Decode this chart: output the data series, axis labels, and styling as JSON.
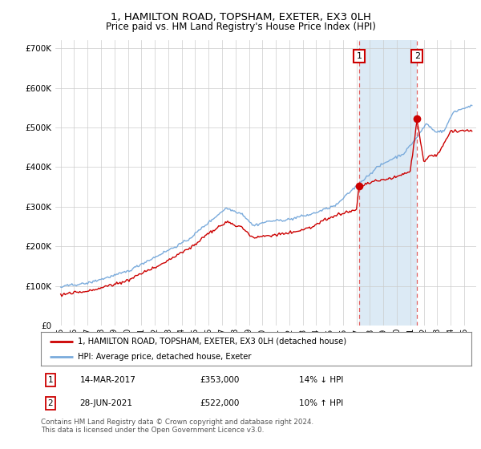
{
  "title": "1, HAMILTON ROAD, TOPSHAM, EXETER, EX3 0LH",
  "subtitle": "Price paid vs. HM Land Registry's House Price Index (HPI)",
  "legend_entry1": "1, HAMILTON ROAD, TOPSHAM, EXETER, EX3 0LH (detached house)",
  "legend_entry2": "HPI: Average price, detached house, Exeter",
  "transaction1_date": "14-MAR-2017",
  "transaction1_price": "£353,000",
  "transaction1_hpi": "14% ↓ HPI",
  "transaction2_date": "28-JUN-2021",
  "transaction2_price": "£522,000",
  "transaction2_hpi": "10% ↑ HPI",
  "footer": "Contains HM Land Registry data © Crown copyright and database right 2024.\nThis data is licensed under the Open Government Licence v3.0.",
  "hpi_color": "#7aabdc",
  "price_color": "#cc0000",
  "vline_color": "#e06060",
  "shade_color": "#dceaf5",
  "background_color": "#ffffff",
  "grid_color": "#cccccc",
  "ylim": [
    0,
    720000
  ],
  "yticks": [
    0,
    100000,
    200000,
    300000,
    400000,
    500000,
    600000,
    700000
  ],
  "transaction1_year": 2017.2,
  "transaction2_year": 2021.5,
  "transaction1_value": 353000,
  "transaction2_value": 522000,
  "hpi_seed": 42,
  "price_seed": 99
}
